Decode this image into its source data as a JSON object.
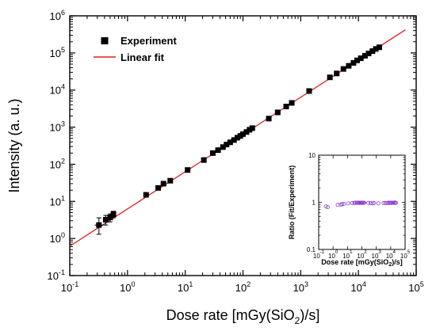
{
  "chart_data": [
    {
      "type": "scatter",
      "title": "",
      "xlabel": "Dose rate [mGy(SiO2)/s]",
      "xlabel_parts": {
        "before": "Dose rate [mGy(SiO",
        "sub": "2",
        "after": ")/s]"
      },
      "ylabel": "Intensity (a. u.)",
      "xscale": "log",
      "yscale": "log",
      "xlim": [
        0.1,
        100000
      ],
      "ylim": [
        0.1,
        1000000
      ],
      "x_ticks": [
        0.1,
        1,
        10,
        100,
        1000,
        10000,
        100000
      ],
      "y_ticks": [
        0.1,
        1,
        10,
        100,
        1000,
        10000,
        100000,
        1000000
      ],
      "tick_base": "10",
      "legend_position": "top-left",
      "legend": [
        {
          "label": "Experiment",
          "marker": "filled-square",
          "color": "#000000"
        },
        {
          "label": "Linear fit",
          "marker": "line",
          "color": "#e02020"
        }
      ],
      "series": [
        {
          "name": "Experiment",
          "color": "#000000",
          "points": [
            {
              "x": 0.32,
              "y": 2.3,
              "yerr": [
                1.3,
                3.6
              ],
              "xerr": [
                0.27,
                0.38
              ]
            },
            {
              "x": 0.42,
              "y": 3.2,
              "yerr": [
                2.3,
                4.2
              ]
            },
            {
              "x": 0.5,
              "y": 3.7,
              "yerr": [
                2.8,
                4.6
              ]
            },
            {
              "x": 0.57,
              "y": 4.5,
              "yerr": [
                3.6,
                5.4
              ]
            },
            {
              "x": 2.1,
              "y": 15
            },
            {
              "x": 3.4,
              "y": 23
            },
            {
              "x": 4.2,
              "y": 30
            },
            {
              "x": 5.5,
              "y": 36
            },
            {
              "x": 11,
              "y": 70
            },
            {
              "x": 21,
              "y": 130
            },
            {
              "x": 30,
              "y": 200
            },
            {
              "x": 37,
              "y": 240
            },
            {
              "x": 45,
              "y": 290
            },
            {
              "x": 52,
              "y": 340
            },
            {
              "x": 60,
              "y": 390
            },
            {
              "x": 70,
              "y": 450
            },
            {
              "x": 80,
              "y": 520
            },
            {
              "x": 90,
              "y": 580
            },
            {
              "x": 100,
              "y": 650
            },
            {
              "x": 115,
              "y": 740
            },
            {
              "x": 130,
              "y": 850
            },
            {
              "x": 145,
              "y": 940
            },
            {
              "x": 280,
              "y": 1700
            },
            {
              "x": 400,
              "y": 2500
            },
            {
              "x": 560,
              "y": 3600
            },
            {
              "x": 700,
              "y": 4500
            },
            {
              "x": 1400,
              "y": 9400
            },
            {
              "x": 3200,
              "y": 22000
            },
            {
              "x": 4200,
              "y": 28000
            },
            {
              "x": 5500,
              "y": 37000
            },
            {
              "x": 6800,
              "y": 45000
            },
            {
              "x": 8200,
              "y": 54000
            },
            {
              "x": 9500,
              "y": 63000
            },
            {
              "x": 11000,
              "y": 72000
            },
            {
              "x": 13000,
              "y": 84000
            },
            {
              "x": 15000,
              "y": 97000
            },
            {
              "x": 17500,
              "y": 112000
            },
            {
              "x": 20000,
              "y": 128000
            },
            {
              "x": 23000,
              "y": 142000
            }
          ]
        },
        {
          "name": "Linear fit",
          "color": "#e02020",
          "line": {
            "x": [
              0.1,
              65000
            ],
            "y": [
              0.62,
              420000
            ]
          }
        }
      ]
    },
    {
      "type": "scatter",
      "title": "",
      "xlabel": "Dose rate [mGy(SiO2)/s]",
      "xlabel_parts": {
        "before": "Dose rate [mGy(SiO",
        "sub": "2",
        "after": ")/s]"
      },
      "ylabel": "Ratio (Fit/Experiment)",
      "xscale": "log",
      "yscale": "log",
      "xlim": [
        0.1,
        100000
      ],
      "ylim": [
        0.1,
        10
      ],
      "x_ticks": [
        0.1,
        1,
        10,
        100,
        1000,
        10000,
        100000
      ],
      "y_ticks": [
        0.1,
        1,
        10
      ],
      "y_tick_labels": [
        "0.1",
        "1",
        "10"
      ],
      "tick_base": "10",
      "series": [
        {
          "color": "#8a3fd1",
          "marker": "open-circle",
          "points": [
            [
              0.32,
              0.82
            ],
            [
              0.42,
              0.79
            ],
            [
              2.1,
              0.88
            ],
            [
              3.4,
              0.9
            ],
            [
              4.2,
              0.91
            ],
            [
              5.5,
              0.92
            ],
            [
              11,
              0.95
            ],
            [
              21,
              0.96
            ],
            [
              30,
              0.97
            ],
            [
              37,
              0.98
            ],
            [
              45,
              0.97
            ],
            [
              52,
              0.98
            ],
            [
              60,
              0.98
            ],
            [
              70,
              0.97
            ],
            [
              80,
              0.98
            ],
            [
              90,
              0.98
            ],
            [
              100,
              0.97
            ],
            [
              115,
              0.98
            ],
            [
              130,
              0.97
            ],
            [
              145,
              0.98
            ],
            [
              280,
              0.97
            ],
            [
              400,
              0.96
            ],
            [
              560,
              0.95
            ],
            [
              700,
              0.97
            ],
            [
              1400,
              0.95
            ],
            [
              3200,
              0.96
            ],
            [
              4200,
              0.97
            ],
            [
              5500,
              0.96
            ],
            [
              6800,
              0.98
            ],
            [
              8200,
              0.97
            ],
            [
              9500,
              0.98
            ],
            [
              11000,
              0.97
            ],
            [
              13000,
              0.98
            ],
            [
              15000,
              0.98
            ],
            [
              17500,
              0.97
            ],
            [
              20000,
              0.99
            ],
            [
              23000,
              0.97
            ]
          ]
        }
      ]
    }
  ]
}
